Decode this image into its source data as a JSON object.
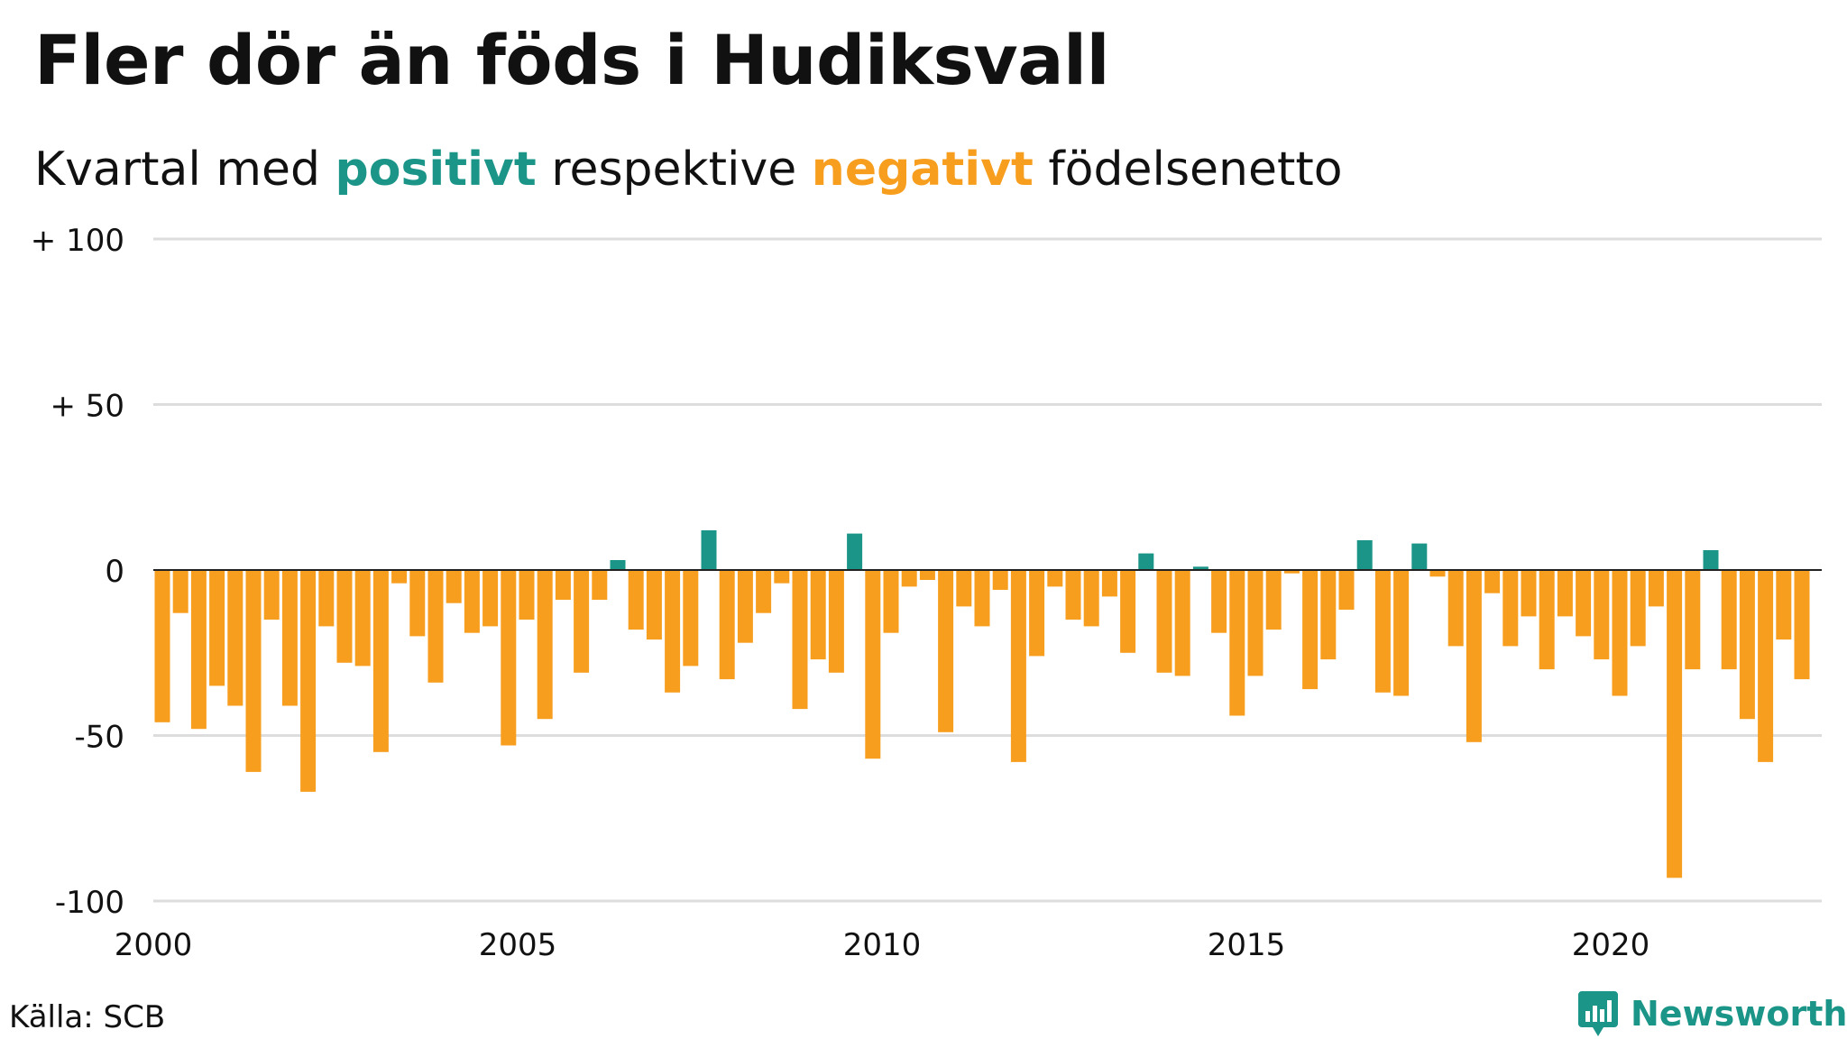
{
  "title": "Fler dör än föds i Hudiksvall",
  "subtitle": {
    "prefix": "Kvartal med ",
    "positive": "positivt",
    "middle": " respektive ",
    "negative": "negativt",
    "suffix": " födelsenetto"
  },
  "source": "Källa: SCB",
  "logo": {
    "text": "Newsworthy",
    "icon": "newsworthy-chart-icon"
  },
  "colors": {
    "positive": "#1a9588",
    "negative": "#f79e1e",
    "grid": "#dddddd",
    "zero_line": "#222222"
  },
  "chart_data": {
    "type": "bar",
    "title": "Fler dör än föds i Hudiksvall",
    "subtitle": "Kvartal med positivt respektive negativt födelsenetto",
    "xlabel": "",
    "ylabel": "",
    "x_start": "2000 Q1",
    "x_ticks": [
      "2000",
      "2005",
      "2010",
      "2015",
      "2020"
    ],
    "y_ticks": [
      "+ 100",
      "+  50",
      "0",
      "-50",
      "-100"
    ],
    "y_tick_values": [
      100,
      50,
      0,
      -50,
      -100
    ],
    "ylim": [
      -100,
      100
    ],
    "grid": true,
    "values": [
      -46,
      -13,
      -48,
      -35,
      -41,
      -61,
      -15,
      -41,
      -67,
      -17,
      -28,
      -29,
      -55,
      -4,
      -20,
      -34,
      -10,
      -19,
      -17,
      -53,
      -15,
      -45,
      -9,
      -31,
      -9,
      3,
      -18,
      -21,
      -37,
      -29,
      12,
      -33,
      -22,
      -13,
      -4,
      -42,
      -27,
      -31,
      11,
      -57,
      -19,
      -5,
      -3,
      -49,
      -11,
      -17,
      -6,
      -58,
      -26,
      -5,
      -15,
      -17,
      -8,
      -25,
      5,
      -31,
      -32,
      1,
      -19,
      -44,
      -32,
      -18,
      -1,
      -36,
      -27,
      -12,
      9,
      -37,
      -38,
      8,
      -2,
      -23,
      -52,
      -7,
      -23,
      -14,
      -30,
      -14,
      -20,
      -27,
      -38,
      -23,
      -11,
      -93,
      -30,
      6,
      -30,
      -45,
      -58,
      -21,
      -33
    ]
  }
}
